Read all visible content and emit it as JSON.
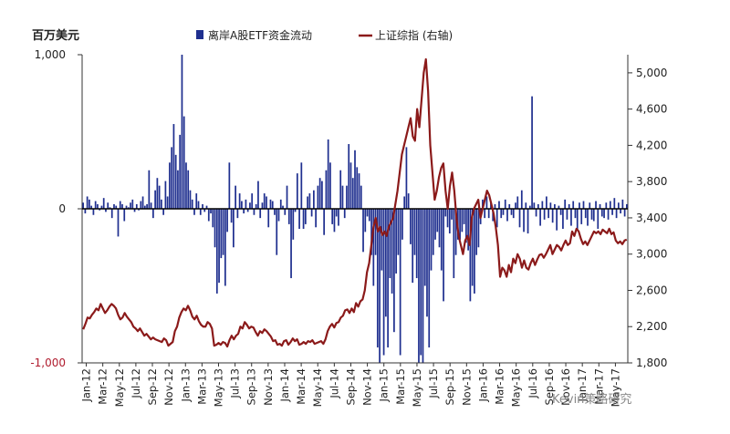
{
  "chart_data": {
    "type": "bar+line",
    "units_left": "百万美元",
    "legend": [
      {
        "name": "离岸A股ETF资金流动",
        "type": "bar",
        "color": "#1f2f8f"
      },
      {
        "name": "上证综指 (右轴)",
        "type": "line",
        "color": "#8b1a1a"
      }
    ],
    "legend_position": "top",
    "left_axis": {
      "ylim": [
        -1000,
        1000
      ],
      "ticks": [
        "1,000",
        "0",
        "-1,000"
      ],
      "tick_values": [
        1000,
        0,
        -1000
      ]
    },
    "right_axis": {
      "ylim": [
        1800,
        5200
      ],
      "ticks": [
        "5,000",
        "4,600",
        "4,200",
        "3,800",
        "3,400",
        "3,000",
        "2,600",
        "2,200",
        "1,800"
      ],
      "tick_values": [
        5000,
        4600,
        4200,
        3800,
        3400,
        3000,
        2600,
        2200,
        1800
      ]
    },
    "x_start": "2012-01",
    "x_end": "2017-06",
    "x_ticks": [
      "Jan-12",
      "Mar-12",
      "May-12",
      "Jul-12",
      "Sep-12",
      "Nov-12",
      "Jan-13",
      "Mar-13",
      "May-13",
      "Jul-13",
      "Sep-13",
      "Nov-13",
      "Jan-14",
      "Mar-14",
      "May-14",
      "Jul-14",
      "Sep-14",
      "Nov-14",
      "Jan-15",
      "Mar-15",
      "May-15",
      "Jul-15",
      "Sep-15",
      "Nov-15",
      "Jan-16",
      "Mar-16",
      "May-16",
      "Jul-16",
      "Sep-16",
      "Nov-16",
      "Jan-17",
      "Mar-17",
      "May-17"
    ],
    "series": [
      {
        "name": "离岸A股ETF资金流动",
        "type": "bar",
        "axis": "left",
        "frequency": "weekly",
        "values": [
          40,
          -30,
          80,
          60,
          20,
          -40,
          50,
          30,
          -10,
          20,
          70,
          -20,
          40,
          10,
          -60,
          30,
          20,
          -180,
          50,
          30,
          -80,
          20,
          10,
          40,
          60,
          -20,
          30,
          -10,
          50,
          80,
          20,
          30,
          250,
          40,
          -60,
          120,
          200,
          150,
          60,
          -40,
          180,
          80,
          300,
          400,
          550,
          350,
          250,
          480,
          1000,
          600,
          300,
          250,
          120,
          60,
          -40,
          100,
          50,
          -40,
          30,
          -20,
          20,
          -80,
          -30,
          -120,
          -250,
          -550,
          -480,
          -320,
          -300,
          -500,
          -150,
          300,
          -90,
          -250,
          150,
          -60,
          100,
          50,
          -30,
          60,
          -20,
          40,
          100,
          -40,
          30,
          180,
          -60,
          40,
          100,
          80,
          -120,
          60,
          50,
          -40,
          -300,
          -80,
          60,
          20,
          -40,
          150,
          -100,
          -450,
          -200,
          -20,
          230,
          -130,
          300,
          -130,
          -100,
          80,
          100,
          -50,
          120,
          -120,
          150,
          200,
          180,
          -170,
          250,
          450,
          300,
          -100,
          -150,
          -50,
          -110,
          250,
          150,
          -60,
          150,
          420,
          300,
          200,
          380,
          270,
          230,
          150,
          -280,
          -150,
          -50,
          -80,
          -300,
          -500,
          -300,
          -900,
          -1000,
          -400,
          -950,
          -700,
          -900,
          -450,
          -550,
          -800,
          -420,
          -300,
          -950,
          -200,
          80,
          400,
          100,
          -230,
          -480,
          -300,
          -450,
          -1000,
          -950,
          -1000,
          -500,
          -700,
          -900,
          -400,
          -300,
          -200,
          -150,
          -250,
          -400,
          -600,
          -50,
          -120,
          -160,
          -70,
          -450,
          -300,
          -200,
          -200,
          -150,
          -100,
          -220,
          -270,
          -600,
          -500,
          -550,
          -300,
          -250,
          -100,
          60,
          -60,
          80,
          -60,
          40,
          -80,
          30,
          -120,
          50,
          -60,
          -40,
          60,
          -80,
          30,
          -40,
          -60,
          40,
          80,
          -120,
          120,
          -150,
          40,
          -160,
          20,
          730,
          40,
          -50,
          30,
          -110,
          50,
          -70,
          80,
          -60,
          40,
          -90,
          30,
          -140,
          20,
          -40,
          -130,
          60,
          -70,
          30,
          -110,
          50,
          -60,
          -140,
          40,
          -100,
          50,
          -60,
          -110,
          40,
          -70,
          -80,
          50,
          -130,
          30,
          -50,
          -60,
          40,
          -70,
          50,
          -40,
          70,
          -60,
          40,
          -30,
          60,
          -50,
          30
        ]
      },
      {
        "name": "上证综指 (右轴)",
        "type": "line",
        "axis": "right",
        "frequency": "weekly",
        "values": [
          2170,
          2230,
          2300,
          2290,
          2330,
          2360,
          2400,
          2380,
          2450,
          2400,
          2350,
          2380,
          2420,
          2450,
          2430,
          2400,
          2330,
          2280,
          2300,
          2350,
          2310,
          2280,
          2250,
          2200,
          2180,
          2150,
          2180,
          2140,
          2100,
          2120,
          2090,
          2060,
          2080,
          2060,
          2050,
          2040,
          2030,
          2070,
          2050,
          1990,
          2010,
          2030,
          2150,
          2200,
          2300,
          2360,
          2400,
          2380,
          2430,
          2380,
          2310,
          2280,
          2320,
          2260,
          2220,
          2200,
          2200,
          2250,
          2230,
          2180,
          1990,
          2000,
          2020,
          2000,
          2030,
          2020,
          1980,
          2050,
          2100,
          2060,
          2100,
          2120,
          2200,
          2180,
          2250,
          2220,
          2180,
          2200,
          2190,
          2140,
          2100,
          2150,
          2130,
          2170,
          2150,
          2120,
          2090,
          2040,
          2050,
          2000,
          2010,
          1990,
          2040,
          2050,
          2000,
          2030,
          2070,
          2040,
          2060,
          2000,
          2010,
          2030,
          2010,
          2040,
          2030,
          2050,
          2010,
          2020,
          2030,
          2040,
          2010,
          2060,
          2150,
          2200,
          2230,
          2190,
          2240,
          2250,
          2300,
          2320,
          2380,
          2390,
          2350,
          2400,
          2360,
          2460,
          2420,
          2480,
          2500,
          2600,
          2800,
          2900,
          3100,
          3300,
          3400,
          3250,
          3300,
          3210,
          3250,
          3200,
          3300,
          3350,
          3400,
          3550,
          3700,
          3900,
          4100,
          4200,
          4300,
          4400,
          4500,
          4300,
          4250,
          4600,
          4400,
          4700,
          5000,
          5150,
          4800,
          4200,
          3900,
          3600,
          3700,
          3850,
          3950,
          4000,
          3700,
          3500,
          3750,
          3900,
          3700,
          3400,
          3200,
          3100,
          3000,
          3150,
          3200,
          3100,
          3400,
          3500,
          3550,
          3600,
          3400,
          3500,
          3600,
          3700,
          3650,
          3550,
          3450,
          3300,
          3100,
          2750,
          2850,
          2820,
          2750,
          2880,
          2800,
          2950,
          2900,
          3000,
          2950,
          2850,
          2930,
          2850,
          2830,
          2900,
          2950,
          2880,
          2940,
          2990,
          3000,
          2960,
          3000,
          3050,
          3100,
          3000,
          3050,
          3100,
          3080,
          3040,
          3100,
          3150,
          3100,
          3120,
          3250,
          3200,
          3280,
          3250,
          3170,
          3110,
          3140,
          3100,
          3150,
          3200,
          3250,
          3230,
          3250,
          3220,
          3270,
          3250,
          3230,
          3280,
          3220,
          3240,
          3150,
          3120,
          3140,
          3110,
          3150,
          3160
        ]
      }
    ]
  },
  "watermark": "Kevin策略研究"
}
